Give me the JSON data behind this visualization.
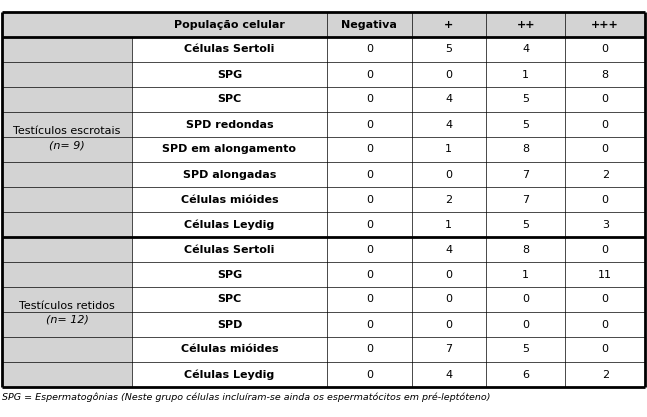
{
  "header_cols": [
    "População celular",
    "Negativa",
    "+",
    "++",
    "+++"
  ],
  "group1_label_line1": "Testículos escrotais",
  "group1_label_line2": "(n= 9)",
  "group1_rows": [
    [
      "Células Sertoli",
      "0",
      "5",
      "4",
      "0"
    ],
    [
      "SPG",
      "0",
      "0",
      "1",
      "8"
    ],
    [
      "SPC",
      "0",
      "4",
      "5",
      "0"
    ],
    [
      "SPD redondas",
      "0",
      "4",
      "5",
      "0"
    ],
    [
      "SPD em alongamento",
      "0",
      "1",
      "8",
      "0"
    ],
    [
      "SPD alongadas",
      "0",
      "0",
      "7",
      "2"
    ],
    [
      "Células mióides",
      "0",
      "2",
      "7",
      "0"
    ],
    [
      "Células Leydig",
      "0",
      "1",
      "5",
      "3"
    ]
  ],
  "group2_label_line1": "Testículos retidos",
  "group2_label_line2": "(n= 12)",
  "group2_rows": [
    [
      "Células Sertoli",
      "0",
      "4",
      "8",
      "0"
    ],
    [
      "SPG",
      "0",
      "0",
      "1",
      "11"
    ],
    [
      "SPC",
      "0",
      "0",
      "0",
      "0"
    ],
    [
      "SPD",
      "0",
      "0",
      "0",
      "0"
    ],
    [
      "Células mióides",
      "0",
      "7",
      "5",
      "0"
    ],
    [
      "Células Leydig",
      "0",
      "4",
      "6",
      "2"
    ]
  ],
  "footer_text": "SPG = Espermatogônias (Neste grupo células incluíram-se ainda os espermatócitos em pré-leptóteno)",
  "bg_gray": "#d3d3d3",
  "bg_white": "#ffffff",
  "border_color": "#000000",
  "text_color": "#000000",
  "header_fontsize": 8.0,
  "body_fontsize": 8.0,
  "footer_fontsize": 6.8,
  "thick_lw": 2.0,
  "thin_lw": 0.5
}
